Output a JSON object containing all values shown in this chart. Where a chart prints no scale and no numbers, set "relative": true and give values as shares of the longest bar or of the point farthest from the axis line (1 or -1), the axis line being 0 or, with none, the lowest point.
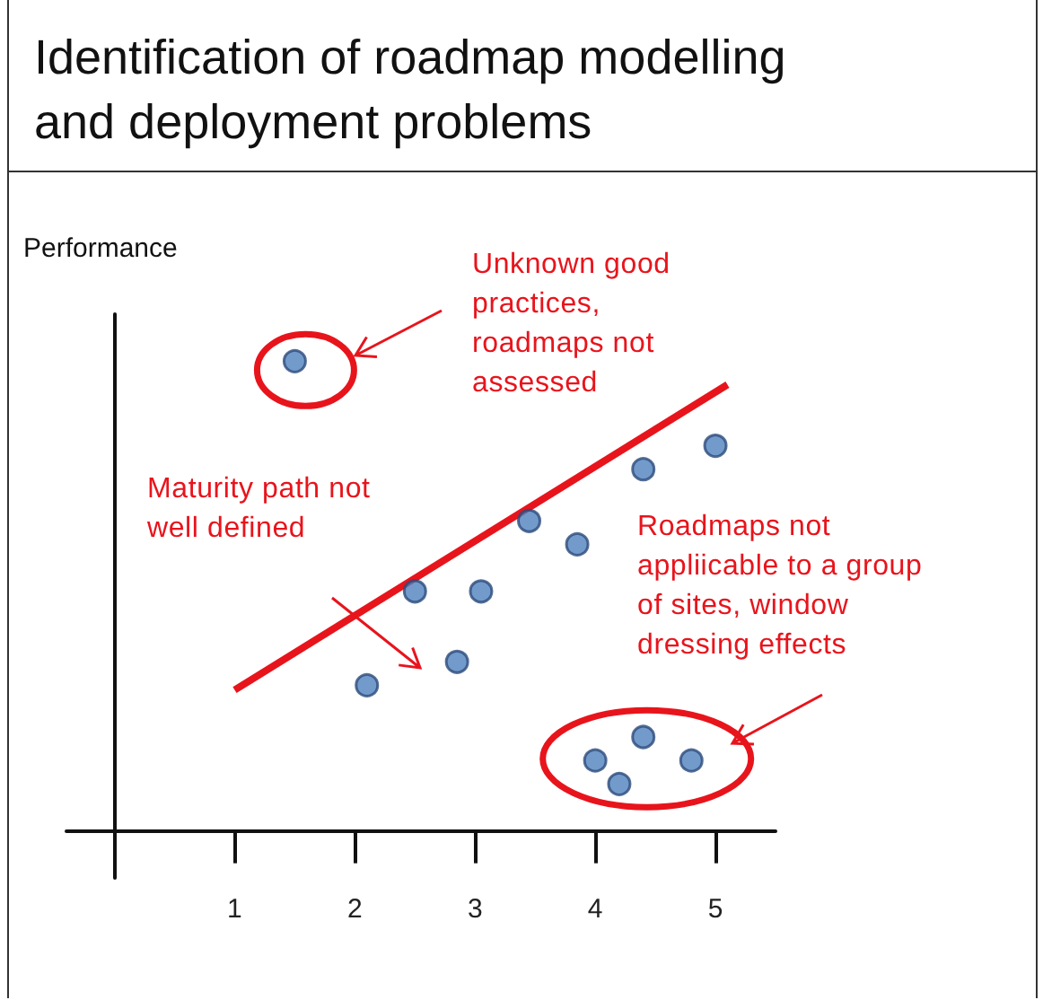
{
  "chart_data": {
    "type": "scatter",
    "title": "Identification of roadmap modelling and deployment problems",
    "ylabel": "Performance",
    "xlim": [
      -0.4,
      5.5
    ],
    "xticks": [
      1,
      2,
      3,
      4,
      5
    ],
    "relative": true,
    "grid": false,
    "annotations": [
      "Unknown good practices, roadmaps not assessed",
      "Maturity path not well defined",
      "Roadmaps not appliicable to a group of sites, window dressing effects"
    ],
    "series": [
      {
        "type": "scatter",
        "color": "#4f81bd",
        "marker": "circle",
        "x": [
          1.5,
          2.1,
          2.5,
          2.85,
          3.05,
          3.45,
          3.85,
          4.4,
          5.0,
          4.0,
          4.2,
          4.4,
          4.8
        ],
        "values": [
          1,
          0.31,
          0.51,
          0.36,
          0.51,
          0.66,
          0.61,
          0.77,
          0.82,
          0.15,
          0.1,
          0.2,
          0.15
        ]
      },
      {
        "type": "line",
        "color": "#e8141c",
        "marker": "none",
        "x": [
          1,
          5.1
        ],
        "values": [
          0.3,
          0.95
        ]
      }
    ]
  }
}
